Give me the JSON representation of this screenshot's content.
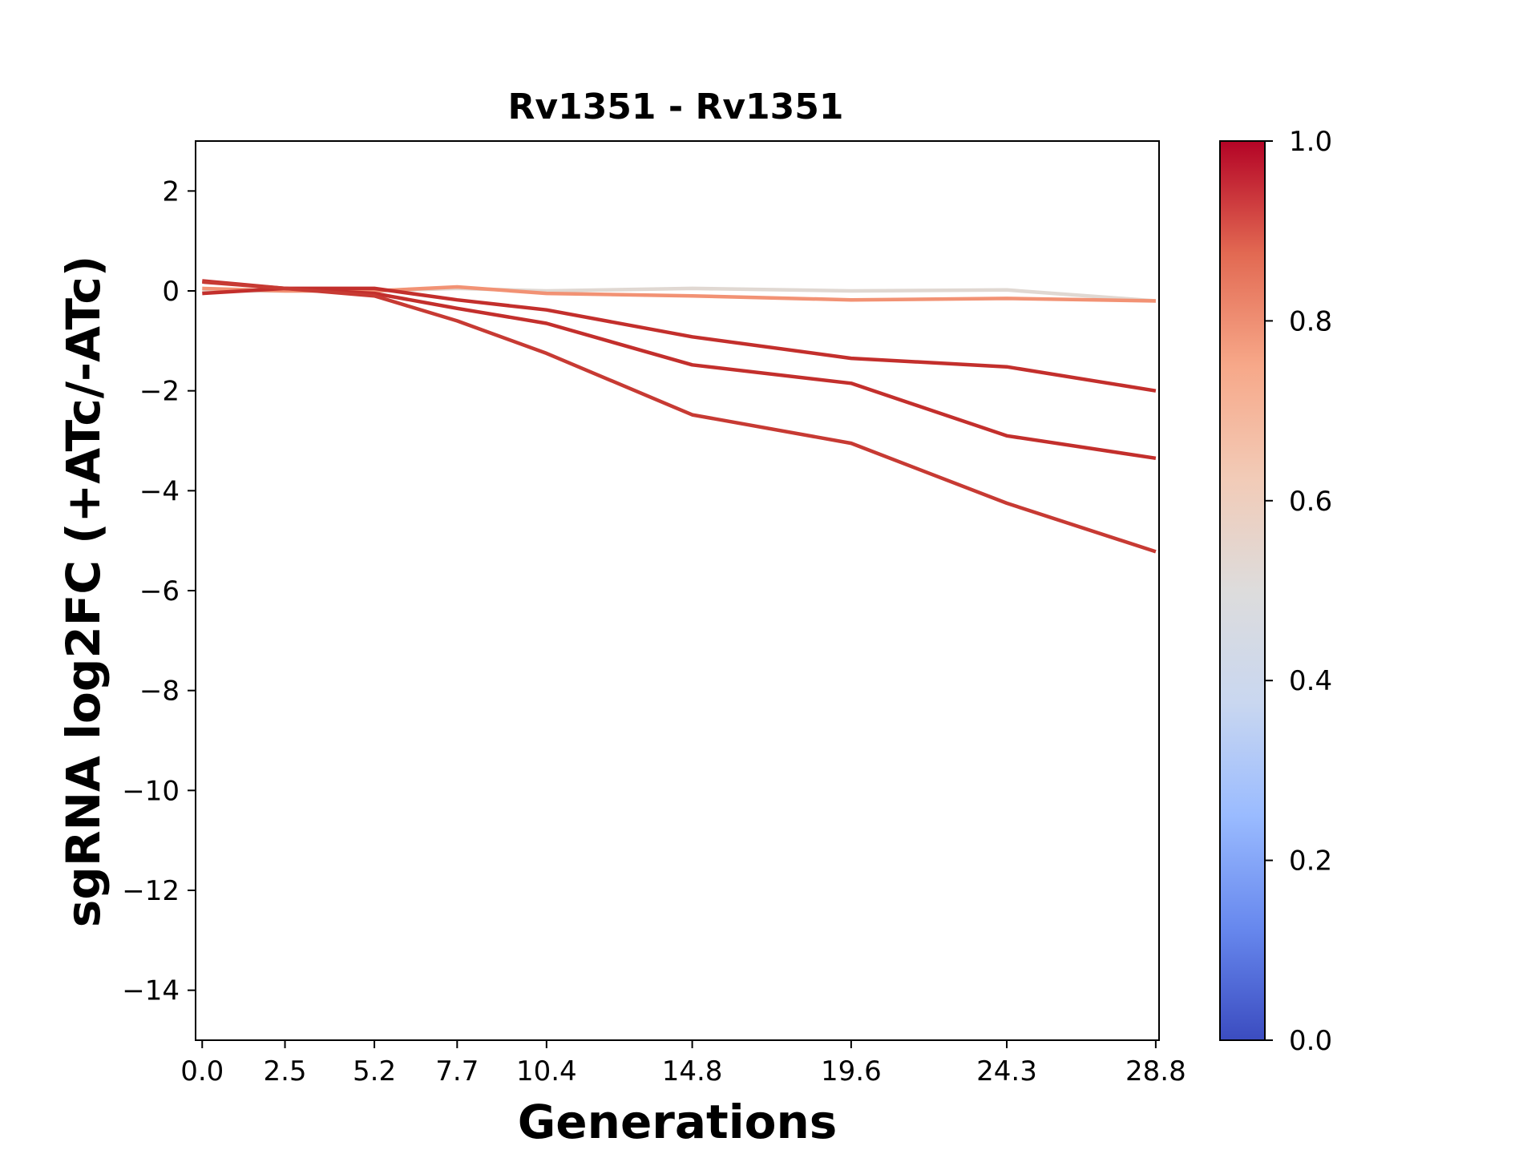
{
  "chart_data": {
    "type": "line",
    "title": "Rv1351 - Rv1351",
    "xlabel": "Generations",
    "ylabel": "sgRNA log2FC (+ATc/-ATc)",
    "x": [
      0.0,
      2.5,
      5.2,
      7.7,
      10.4,
      14.8,
      19.6,
      24.3,
      28.8
    ],
    "x_tick_labels": [
      "0.0",
      "2.5",
      "5.2",
      "7.7",
      "10.4",
      "14.8",
      "19.6",
      "24.3",
      "28.8"
    ],
    "xlim": [
      -0.2,
      28.9
    ],
    "ylim": [
      -15,
      3
    ],
    "y_ticks": [
      2,
      0,
      -2,
      -4,
      -6,
      -8,
      -10,
      -12,
      -14
    ],
    "y_tick_labels": [
      "2",
      "0",
      "−2",
      "−4",
      "−6",
      "−8",
      "−10",
      "−12",
      "−14"
    ],
    "grid": false,
    "series": [
      {
        "color_value": 0.55,
        "color": "#e0d8d2",
        "values": [
          0.0,
          0.0,
          0.0,
          0.05,
          0.0,
          0.05,
          0.0,
          0.02,
          -0.2
        ]
      },
      {
        "color_value": 0.75,
        "color": "#f29274",
        "values": [
          0.05,
          0.0,
          0.0,
          0.08,
          -0.05,
          -0.1,
          -0.18,
          -0.15,
          -0.2
        ]
      },
      {
        "color_value": 0.93,
        "color": "#c32f2c",
        "values": [
          -0.05,
          0.05,
          0.05,
          -0.18,
          -0.38,
          -0.92,
          -1.35,
          -1.52,
          -2.0
        ]
      },
      {
        "color_value": 0.93,
        "color": "#c32f2c",
        "values": [
          0.2,
          0.05,
          -0.05,
          -0.35,
          -0.65,
          -1.48,
          -1.85,
          -2.9,
          -3.35
        ]
      },
      {
        "color_value": 0.93,
        "color": "#c73a33",
        "values": [
          0.18,
          0.05,
          -0.1,
          -0.6,
          -1.25,
          -2.48,
          -3.05,
          -4.25,
          -5.22
        ]
      }
    ],
    "colorbar": {
      "colormap": "coolwarm",
      "range": [
        0.0,
        1.0
      ],
      "ticks": [
        0.0,
        0.2,
        0.4,
        0.6,
        0.8,
        1.0
      ],
      "tick_labels": [
        "0.0",
        "0.2",
        "0.4",
        "0.6",
        "0.8",
        "1.0"
      ],
      "stops": [
        "#3b4cc0",
        "#6788ee",
        "#9abbff",
        "#c9d7f0",
        "#dddcdc",
        "#f2cbb7",
        "#f7a889",
        "#e26952",
        "#b40426"
      ]
    }
  }
}
